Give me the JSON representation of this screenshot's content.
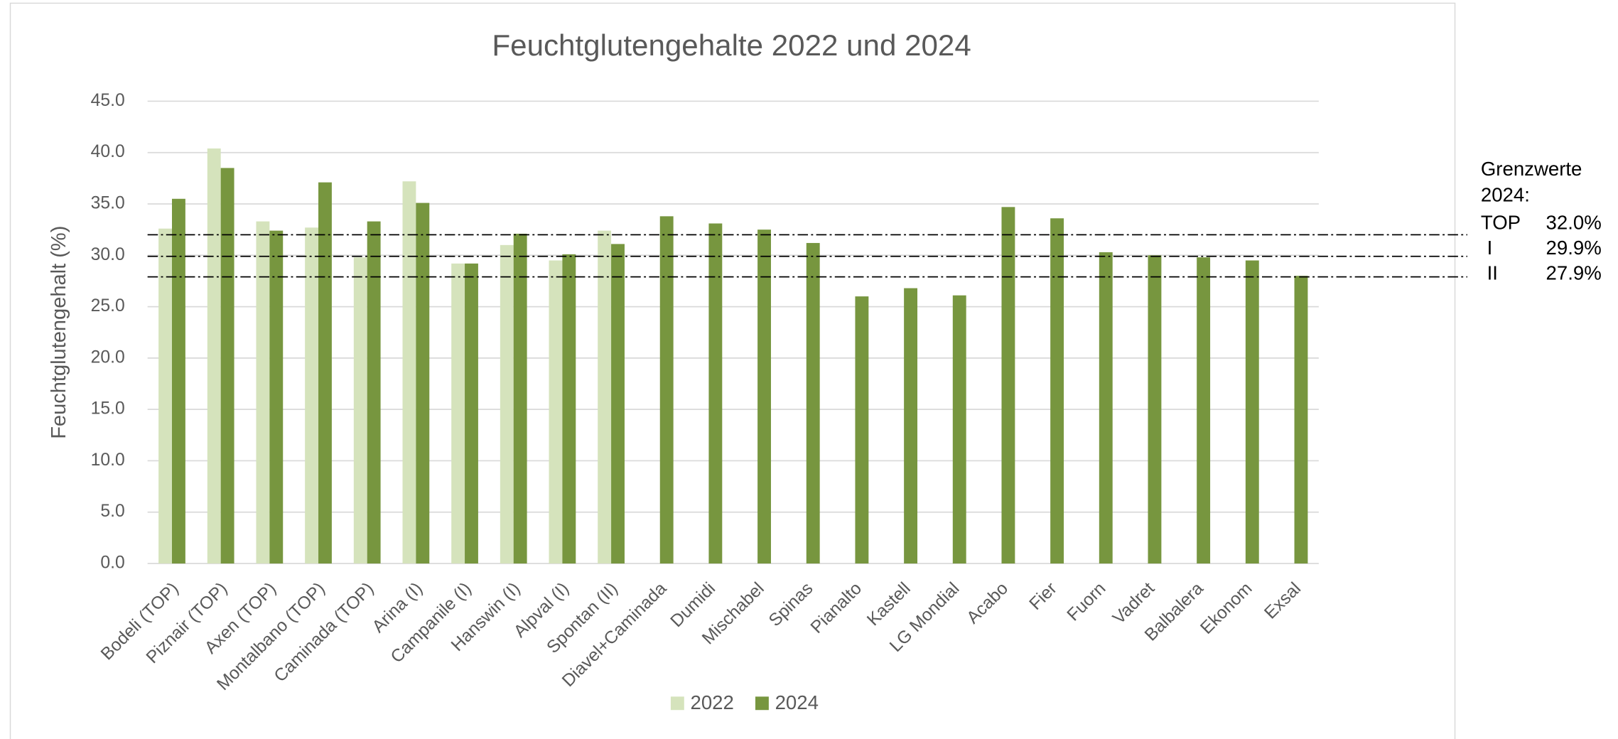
{
  "chart_data": {
    "type": "bar",
    "title": "Feuchtglutengehalte 2022 und 2024",
    "y_label": "Feuchtglutengehalt (%)",
    "categories": [
      "Bodeli (TOP)",
      "Piznair (TOP)",
      "Axen (TOP)",
      "Montalbano (TOP)",
      "Caminada (TOP)",
      "Arina (I)",
      "Campanile (I)",
      "Hanswin (I)",
      "Alpval (I)",
      "Spontan (II)",
      "Diavel+Caminada",
      "Dumidi",
      "Mischabel",
      "Spinas",
      "Pianalto",
      "Kastell",
      "LG Mondial",
      "Acabo",
      "Fier",
      "Fuorn",
      "Vadret",
      "Balbalera",
      "Ekonom",
      "Exsal"
    ],
    "series": [
      {
        "name": "2022",
        "color": "#d5e3bc",
        "values": [
          32.6,
          40.4,
          33.3,
          32.7,
          29.8,
          37.2,
          29.2,
          31.0,
          29.5,
          32.4,
          null,
          null,
          null,
          null,
          null,
          null,
          null,
          null,
          null,
          null,
          null,
          null,
          null,
          null
        ]
      },
      {
        "name": "2024",
        "color": "#77963f",
        "values": [
          35.5,
          38.5,
          32.4,
          37.1,
          33.3,
          35.1,
          29.2,
          32.1,
          30.1,
          31.1,
          33.8,
          33.1,
          32.5,
          31.2,
          26.0,
          26.8,
          26.1,
          34.7,
          33.6,
          30.3,
          30.0,
          29.8,
          29.5,
          28.0
        ]
      }
    ],
    "ylim": [
      0,
      45
    ],
    "yticks": [
      {
        "value": 0,
        "label": "0.0"
      },
      {
        "value": 5,
        "label": "5.0"
      },
      {
        "value": 10,
        "label": "10.0"
      },
      {
        "value": 15,
        "label": "15.0"
      },
      {
        "value": 20,
        "label": "20.0"
      },
      {
        "value": 25,
        "label": "25.0"
      },
      {
        "value": 30,
        "label": "30.0"
      },
      {
        "value": 35,
        "label": "35.0"
      },
      {
        "value": 40,
        "label": "40.0"
      },
      {
        "value": 45,
        "label": "45.0"
      }
    ],
    "grid": true,
    "legend": "bottom",
    "threshold_title": [
      "Grenzwerte",
      "2024:"
    ],
    "thresholds": [
      {
        "name": "TOP",
        "value": 32.0,
        "label": "32.0%"
      },
      {
        "name": "I",
        "value": 29.9,
        "label": "29.9%"
      },
      {
        "name": "II",
        "value": 27.9,
        "label": "27.9%"
      }
    ]
  }
}
